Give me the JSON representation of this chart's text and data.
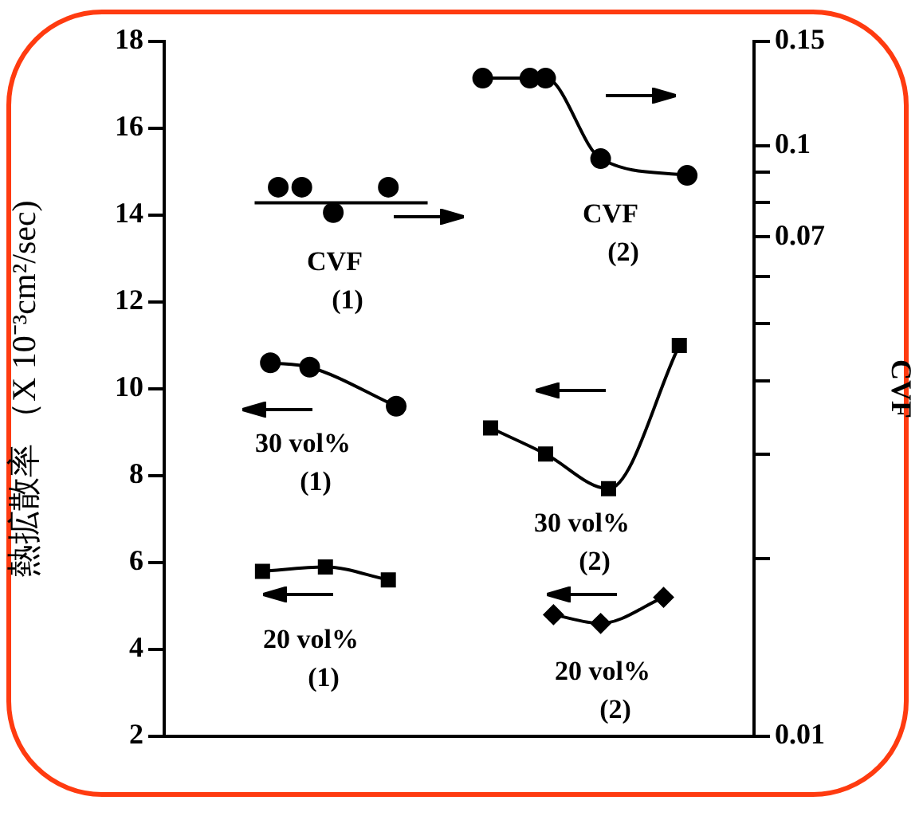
{
  "chart_data": {
    "type": "line",
    "ylabel": "熱拡散率 （X 10⁻³cm²/sec)",
    "y2label": "CVF",
    "categories": [
      null,
      null,
      null,
      null,
      null,
      null,
      null,
      null,
      null,
      null,
      null,
      null,
      null,
      null,
      null,
      null,
      null,
      null,
      null,
      null,
      null,
      null,
      null,
      null,
      null,
      null,
      null,
      null,
      null,
      null,
      null,
      null,
      null,
      null,
      null,
      null,
      null,
      null,
      null,
      null,
      null,
      null,
      null,
      null,
      null,
      null,
      null,
      null,
      null,
      null,
      null,
      null,
      null,
      null,
      null,
      null,
      null,
      null,
      null,
      null,
      null,
      null,
      null,
      null,
      null,
      null,
      null,
      null,
      null,
      null,
      null,
      null,
      null,
      null,
      null
    ],
    "ylim": [
      2,
      18
    ],
    "yticks": [
      2,
      4,
      6,
      8,
      10,
      12,
      14,
      16,
      18
    ],
    "y2lim": [
      0.01,
      0.15
    ],
    "log": "y2",
    "y2ticks": [
      0.01,
      {
        "value": 0.02,
        "label": null
      },
      {
        "value": 0.03,
        "label": null
      },
      {
        "value": 0.04,
        "label": null
      },
      {
        "value": 0.05,
        "label": null
      },
      {
        "value": 0.06,
        "label": null
      },
      0.07,
      {
        "value": 0.08,
        "label": null
      },
      {
        "value": 0.09,
        "label": null
      },
      0.1,
      0.15
    ],
    "tick_labels": "y",
    "annotations": [
      "CVF (1)",
      "CVF (2)",
      "30 vol% (1)",
      "30 vol% (2)",
      "20 vol% (1)",
      "20 vol% (2)"
    ],
    "series": [
      {
        "color": "#000000",
        "axis": "y2",
        "marker": "circle",
        "type": "scatter",
        "values": [
          null,
          null,
          null,
          null,
          null,
          null,
          null,
          null,
          null,
          null,
          null,
          null,
          null,
          null,
          0.085,
          null,
          null,
          0.085,
          null,
          null,
          null,
          0.077,
          null,
          null,
          null,
          null,
          null,
          null,
          0.085,
          null,
          null,
          null,
          null,
          null,
          null,
          null,
          null,
          null,
          null,
          null,
          null,
          null,
          null,
          null,
          null,
          null,
          null,
          null,
          null,
          null,
          null,
          null,
          null,
          null,
          null,
          null,
          null,
          null,
          null,
          null,
          null,
          null,
          null,
          null,
          null,
          null,
          null,
          null,
          null,
          null,
          null,
          null,
          null,
          null,
          null
        ]
      },
      {
        "color": "#000000",
        "axis": "y2",
        "marker": "none",
        "line_style": "solid",
        "values": [
          null,
          null,
          null,
          null,
          null,
          null,
          null,
          null,
          null,
          null,
          null,
          0.08,
          null,
          null,
          null,
          null,
          null,
          null,
          null,
          null,
          null,
          null,
          null,
          null,
          null,
          null,
          null,
          null,
          null,
          null,
          null,
          null,
          null,
          0.08,
          null,
          null,
          null,
          null,
          null,
          null,
          null,
          null,
          null,
          null,
          null,
          null,
          null,
          null,
          null,
          null,
          null,
          null,
          null,
          null,
          null,
          null,
          null,
          null,
          null,
          null,
          null,
          null,
          null,
          null,
          null,
          null,
          null,
          null,
          null,
          null,
          null,
          null,
          null,
          null,
          null
        ]
      },
      {
        "color": "#000000",
        "axis": "y2",
        "marker": "circle",
        "line_style": "solid",
        "values": [
          null,
          null,
          null,
          null,
          null,
          null,
          null,
          null,
          null,
          null,
          null,
          null,
          null,
          null,
          null,
          null,
          null,
          null,
          null,
          null,
          null,
          null,
          null,
          null,
          null,
          null,
          null,
          null,
          null,
          null,
          null,
          null,
          null,
          null,
          null,
          null,
          null,
          null,
          null,
          null,
          0.13,
          null,
          null,
          null,
          null,
          null,
          0.13,
          null,
          0.13,
          null,
          null,
          null,
          null,
          null,
          null,
          0.095,
          null,
          null,
          null,
          null,
          null,
          null,
          null,
          null,
          null,
          null,
          0.089,
          null,
          null,
          null,
          null,
          null,
          null,
          null,
          null
        ]
      },
      {
        "color": "#000000",
        "axis": "y",
        "marker": "circle",
        "line_style": "solid",
        "values": [
          null,
          null,
          null,
          null,
          null,
          null,
          null,
          null,
          null,
          null,
          null,
          null,
          null,
          10.6,
          null,
          null,
          null,
          null,
          10.5,
          null,
          null,
          null,
          null,
          null,
          null,
          null,
          null,
          null,
          null,
          9.6,
          null,
          null,
          null,
          null,
          null,
          null,
          null,
          null,
          null,
          null,
          null,
          null,
          null,
          null,
          null,
          null,
          null,
          null,
          null,
          null,
          null,
          null,
          null,
          null,
          null,
          null,
          null,
          null,
          null,
          null,
          null,
          null,
          null,
          null,
          null,
          null,
          null,
          null,
          null,
          null,
          null,
          null,
          null,
          null,
          null
        ]
      },
      {
        "color": "#000000",
        "axis": "y",
        "marker": "square",
        "line_style": "solid",
        "values": [
          null,
          null,
          null,
          null,
          null,
          null,
          null,
          null,
          null,
          null,
          null,
          null,
          null,
          null,
          null,
          null,
          null,
          null,
          null,
          null,
          null,
          null,
          null,
          null,
          null,
          null,
          null,
          null,
          null,
          null,
          null,
          null,
          null,
          null,
          null,
          null,
          null,
          null,
          null,
          null,
          null,
          9.1,
          null,
          null,
          null,
          null,
          null,
          null,
          8.5,
          null,
          null,
          null,
          null,
          null,
          null,
          null,
          7.7,
          null,
          null,
          null,
          null,
          null,
          null,
          null,
          null,
          11.0,
          null,
          null,
          null,
          null,
          null,
          null,
          null,
          null,
          null
        ]
      },
      {
        "color": "#000000",
        "axis": "y",
        "marker": "square",
        "line_style": "solid",
        "values": [
          null,
          null,
          null,
          null,
          null,
          null,
          null,
          null,
          null,
          null,
          null,
          null,
          5.8,
          null,
          null,
          null,
          null,
          null,
          null,
          null,
          5.9,
          null,
          null,
          null,
          null,
          null,
          null,
          null,
          5.6,
          null,
          null,
          null,
          null,
          null,
          null,
          null,
          null,
          null,
          null,
          null,
          null,
          null,
          null,
          null,
          null,
          null,
          null,
          null,
          null,
          null,
          null,
          null,
          null,
          null,
          null,
          null,
          null,
          null,
          null,
          null,
          null,
          null,
          null,
          null,
          null,
          null,
          null,
          null,
          null,
          null,
          null,
          null,
          null,
          null,
          null
        ]
      },
      {
        "color": "#000000",
        "axis": "y",
        "marker": "diamond",
        "line_style": "solid",
        "values": [
          null,
          null,
          null,
          null,
          null,
          null,
          null,
          null,
          null,
          null,
          null,
          null,
          null,
          null,
          null,
          null,
          null,
          null,
          null,
          null,
          null,
          null,
          null,
          null,
          null,
          null,
          null,
          null,
          null,
          null,
          null,
          null,
          null,
          null,
          null,
          null,
          null,
          null,
          null,
          null,
          null,
          null,
          null,
          null,
          null,
          null,
          null,
          null,
          null,
          4.8,
          null,
          null,
          null,
          null,
          null,
          4.6,
          null,
          null,
          null,
          null,
          null,
          null,
          null,
          5.2,
          null,
          null,
          null,
          null,
          null,
          null,
          null,
          null,
          null,
          null,
          null
        ]
      }
    ]
  }
}
